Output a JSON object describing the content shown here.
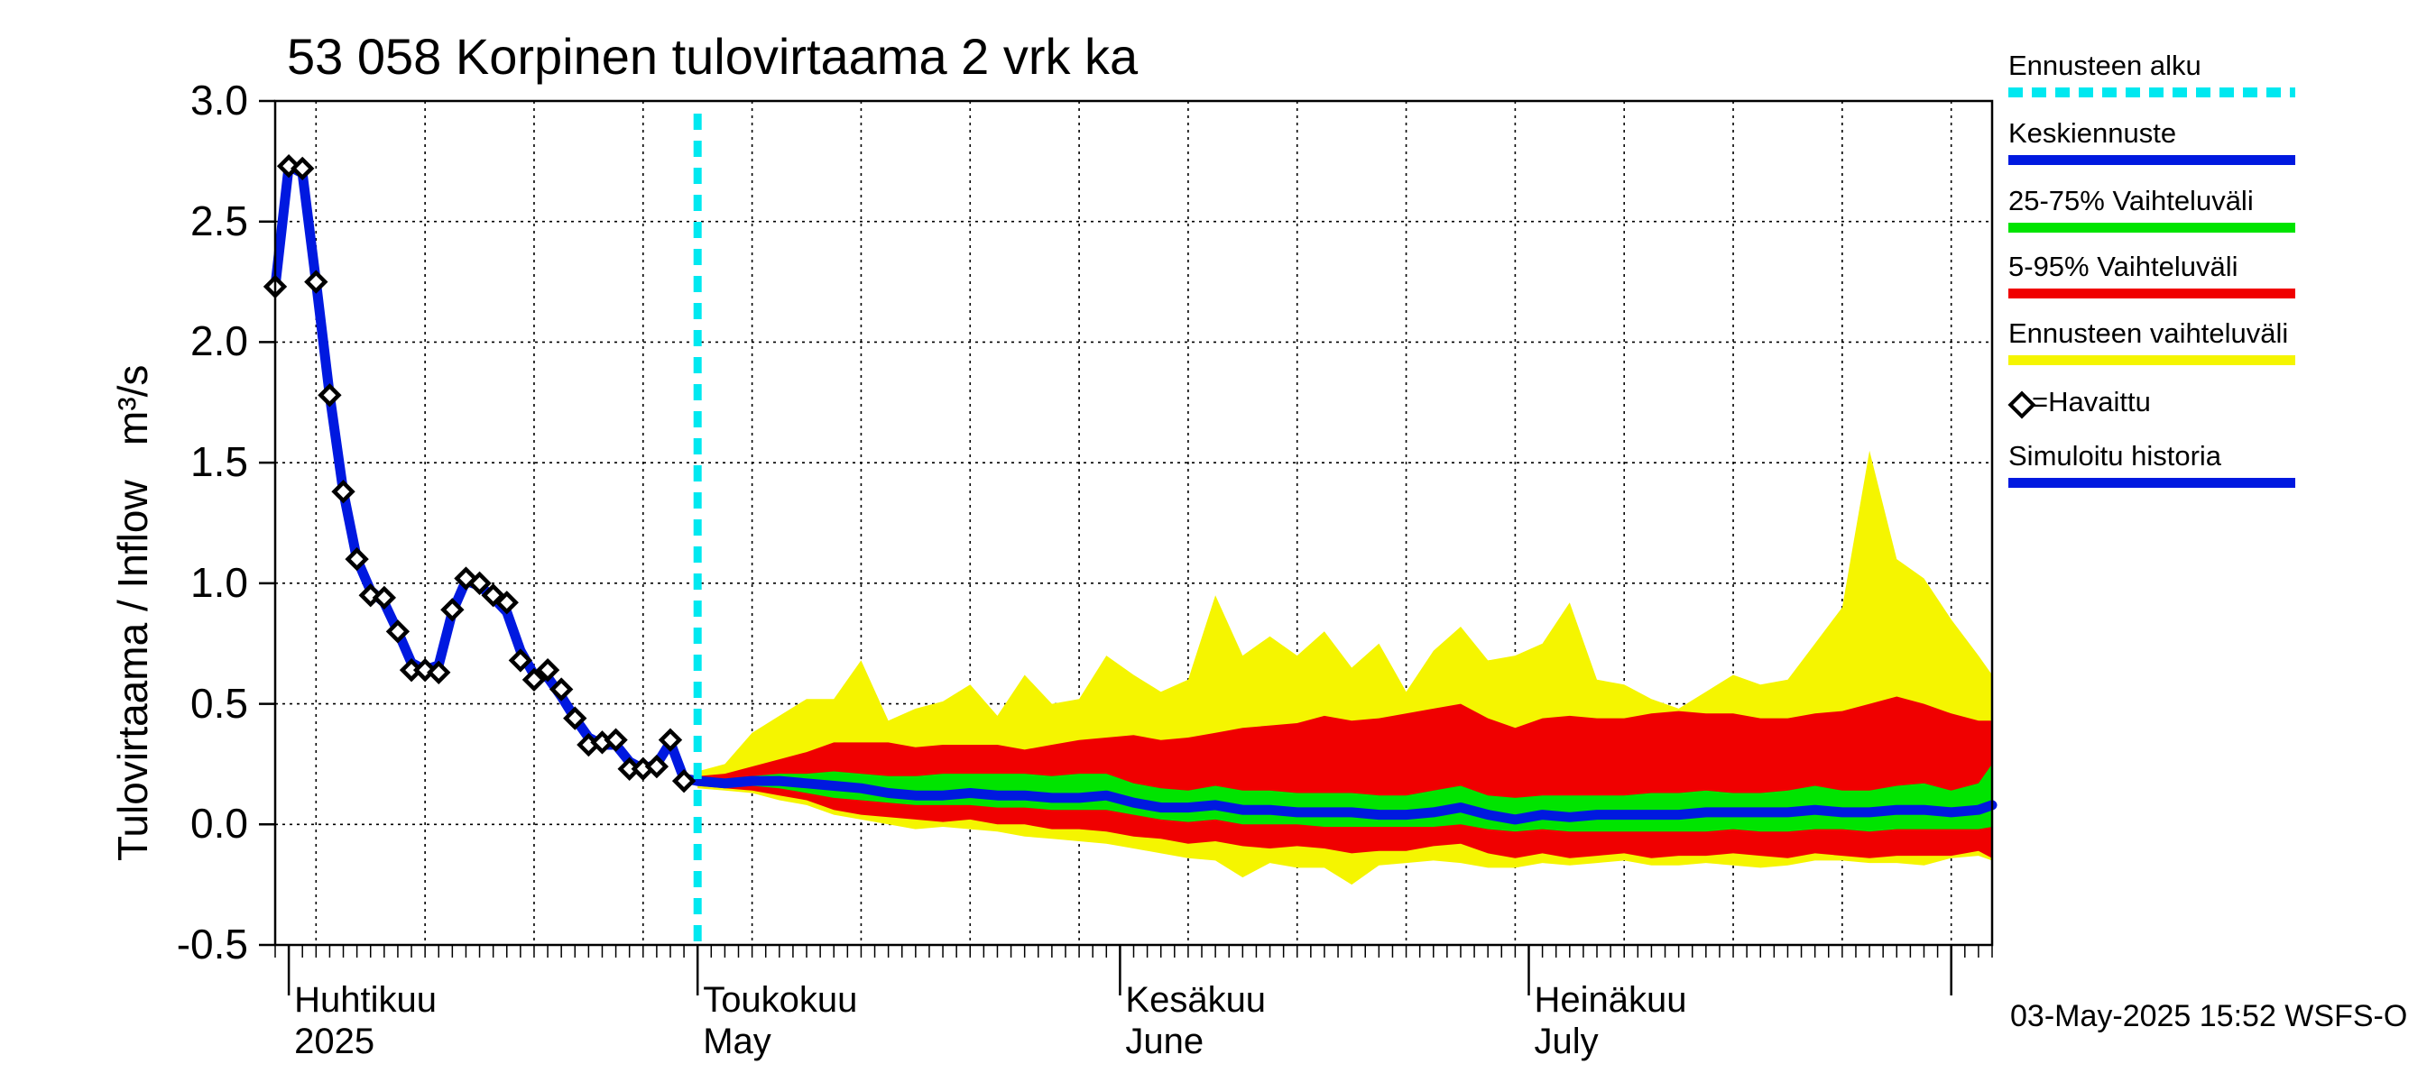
{
  "title": "53 058 Korpinen tulovirtaama 2 vrk ka",
  "ylabel": "Tulovirtaama / Inflow   m³/s",
  "footer": "03-May-2025 15:52 WSFS-O",
  "month_labels": [
    {
      "fi": "Huhtikuu",
      "en": "2025"
    },
    {
      "fi": "Toukokuu",
      "en": "May"
    },
    {
      "fi": "Kesäkuu",
      "en": "June"
    },
    {
      "fi": "Heinäkuu",
      "en": "July"
    }
  ],
  "legend": [
    {
      "label": "Ennusteen alku",
      "color": "#00e8f0",
      "style": "dashed"
    },
    {
      "label": "Keskiennuste",
      "color": "#0019e0",
      "style": "solid"
    },
    {
      "label": "25-75% Vaihteluväli",
      "color": "#00e400",
      "style": "solid"
    },
    {
      "label": "5-95% Vaihteluväli",
      "color": "#f00000",
      "style": "solid"
    },
    {
      "label": "Ennusteen vaihteluväli",
      "color": "#f5f500",
      "style": "solid"
    },
    {
      "label": "=Havaittu",
      "color": "#000000",
      "style": "marker"
    },
    {
      "label": "Simuloitu historia",
      "color": "#0019e0",
      "style": "solid"
    }
  ],
  "chart_data": {
    "type": "line",
    "title": "53 058 Korpinen tulovirtaama 2 vrk ka",
    "ylabel": "Tulovirtaama / Inflow   m³/s",
    "ylim": [
      -0.5,
      3.0
    ],
    "yticks": [
      -0.5,
      0.0,
      0.5,
      1.0,
      1.5,
      2.0,
      2.5,
      3.0
    ],
    "xlim": [
      "2025-03-31",
      "2025-08-04"
    ],
    "grid": true,
    "forecast_start": "2025-05-01",
    "observed": {
      "name": "Havaittu",
      "x": [
        "2025-03-31",
        "2025-04-01",
        "2025-04-02",
        "2025-04-03",
        "2025-04-04",
        "2025-04-05",
        "2025-04-06",
        "2025-04-07",
        "2025-04-08",
        "2025-04-09",
        "2025-04-10",
        "2025-04-11",
        "2025-04-12",
        "2025-04-13",
        "2025-04-14",
        "2025-04-15",
        "2025-04-16",
        "2025-04-17",
        "2025-04-18",
        "2025-04-19",
        "2025-04-20",
        "2025-04-21",
        "2025-04-22",
        "2025-04-23",
        "2025-04-24",
        "2025-04-25",
        "2025-04-26",
        "2025-04-27",
        "2025-04-28",
        "2025-04-29",
        "2025-04-30"
      ],
      "y": [
        2.23,
        2.73,
        2.72,
        2.25,
        1.78,
        1.38,
        1.1,
        0.95,
        0.94,
        0.8,
        0.64,
        0.64,
        0.63,
        0.89,
        1.02,
        1.0,
        0.95,
        0.92,
        0.68,
        0.6,
        0.64,
        0.56,
        0.44,
        0.33,
        0.34,
        0.35,
        0.23,
        0.23,
        0.24,
        0.35,
        0.18
      ]
    },
    "simulated_history": {
      "name": "Simuloitu historia",
      "x": [
        "2025-03-31",
        "2025-04-01",
        "2025-04-02",
        "2025-04-03",
        "2025-04-04",
        "2025-04-05",
        "2025-04-06",
        "2025-04-07",
        "2025-04-08",
        "2025-04-09",
        "2025-04-10",
        "2025-04-11",
        "2025-04-12",
        "2025-04-13",
        "2025-04-14",
        "2025-04-15",
        "2025-04-16",
        "2025-04-17",
        "2025-04-18",
        "2025-04-19",
        "2025-04-20",
        "2025-04-21",
        "2025-04-22",
        "2025-04-23",
        "2025-04-24",
        "2025-04-25",
        "2025-04-26",
        "2025-04-27",
        "2025-04-28",
        "2025-04-29",
        "2025-04-30",
        "2025-05-01"
      ],
      "y": [
        2.23,
        2.73,
        2.7,
        2.25,
        1.78,
        1.38,
        1.1,
        0.97,
        0.92,
        0.8,
        0.67,
        0.64,
        0.66,
        0.88,
        1.01,
        0.99,
        0.94,
        0.88,
        0.72,
        0.62,
        0.61,
        0.53,
        0.44,
        0.36,
        0.33,
        0.33,
        0.26,
        0.23,
        0.25,
        0.34,
        0.19,
        0.18
      ]
    },
    "forecast": {
      "x": [
        "2025-05-01",
        "2025-05-03",
        "2025-05-05",
        "2025-05-07",
        "2025-05-09",
        "2025-05-11",
        "2025-05-13",
        "2025-05-15",
        "2025-05-17",
        "2025-05-19",
        "2025-05-21",
        "2025-05-23",
        "2025-05-25",
        "2025-05-27",
        "2025-05-29",
        "2025-05-31",
        "2025-06-02",
        "2025-06-04",
        "2025-06-06",
        "2025-06-08",
        "2025-06-10",
        "2025-06-12",
        "2025-06-14",
        "2025-06-16",
        "2025-06-18",
        "2025-06-20",
        "2025-06-22",
        "2025-06-24",
        "2025-06-26",
        "2025-06-28",
        "2025-06-30",
        "2025-07-02",
        "2025-07-04",
        "2025-07-06",
        "2025-07-08",
        "2025-07-10",
        "2025-07-12",
        "2025-07-14",
        "2025-07-16",
        "2025-07-18",
        "2025-07-20",
        "2025-07-22",
        "2025-07-24",
        "2025-07-26",
        "2025-07-28",
        "2025-07-30",
        "2025-08-01",
        "2025-08-03",
        "2025-08-04"
      ],
      "median": [
        0.18,
        0.17,
        0.18,
        0.18,
        0.17,
        0.16,
        0.15,
        0.13,
        0.12,
        0.12,
        0.13,
        0.12,
        0.12,
        0.11,
        0.11,
        0.12,
        0.09,
        0.07,
        0.07,
        0.08,
        0.06,
        0.06,
        0.05,
        0.05,
        0.05,
        0.04,
        0.04,
        0.05,
        0.07,
        0.04,
        0.02,
        0.04,
        0.03,
        0.04,
        0.04,
        0.04,
        0.04,
        0.05,
        0.05,
        0.05,
        0.05,
        0.06,
        0.05,
        0.05,
        0.06,
        0.06,
        0.05,
        0.06,
        0.08
      ],
      "p25": [
        0.17,
        0.16,
        0.16,
        0.15,
        0.13,
        0.11,
        0.1,
        0.09,
        0.08,
        0.08,
        0.08,
        0.07,
        0.07,
        0.06,
        0.06,
        0.06,
        0.04,
        0.02,
        0.01,
        0.02,
        0.0,
        0.0,
        0.0,
        -0.01,
        -0.01,
        -0.01,
        -0.01,
        -0.01,
        0.0,
        -0.02,
        -0.03,
        -0.02,
        -0.03,
        -0.03,
        -0.03,
        -0.03,
        -0.03,
        -0.03,
        -0.02,
        -0.03,
        -0.03,
        -0.02,
        -0.02,
        -0.03,
        -0.02,
        -0.02,
        -0.02,
        -0.02,
        -0.01
      ],
      "p75": [
        0.19,
        0.19,
        0.2,
        0.21,
        0.21,
        0.22,
        0.21,
        0.2,
        0.2,
        0.21,
        0.21,
        0.21,
        0.21,
        0.2,
        0.21,
        0.21,
        0.17,
        0.15,
        0.14,
        0.16,
        0.14,
        0.14,
        0.13,
        0.13,
        0.13,
        0.12,
        0.12,
        0.14,
        0.16,
        0.12,
        0.11,
        0.12,
        0.12,
        0.12,
        0.12,
        0.13,
        0.13,
        0.14,
        0.13,
        0.13,
        0.14,
        0.16,
        0.14,
        0.14,
        0.16,
        0.17,
        0.14,
        0.17,
        0.25
      ],
      "p05": [
        0.16,
        0.15,
        0.14,
        0.12,
        0.1,
        0.06,
        0.04,
        0.03,
        0.02,
        0.01,
        0.02,
        0.0,
        0.0,
        -0.02,
        -0.02,
        -0.03,
        -0.05,
        -0.06,
        -0.08,
        -0.07,
        -0.09,
        -0.1,
        -0.09,
        -0.1,
        -0.12,
        -0.11,
        -0.11,
        -0.09,
        -0.08,
        -0.12,
        -0.14,
        -0.12,
        -0.14,
        -0.13,
        -0.12,
        -0.14,
        -0.13,
        -0.13,
        -0.12,
        -0.13,
        -0.14,
        -0.12,
        -0.13,
        -0.14,
        -0.13,
        -0.13,
        -0.13,
        -0.11,
        -0.14
      ],
      "p95": [
        0.2,
        0.21,
        0.24,
        0.27,
        0.3,
        0.34,
        0.34,
        0.34,
        0.32,
        0.33,
        0.33,
        0.33,
        0.31,
        0.33,
        0.35,
        0.36,
        0.37,
        0.35,
        0.36,
        0.38,
        0.4,
        0.41,
        0.42,
        0.45,
        0.43,
        0.44,
        0.46,
        0.48,
        0.5,
        0.44,
        0.4,
        0.44,
        0.45,
        0.44,
        0.44,
        0.46,
        0.47,
        0.46,
        0.46,
        0.44,
        0.44,
        0.46,
        0.47,
        0.5,
        0.53,
        0.5,
        0.46,
        0.43,
        0.43
      ],
      "min": [
        0.15,
        0.14,
        0.13,
        0.1,
        0.08,
        0.04,
        0.02,
        0.0,
        -0.02,
        -0.01,
        -0.02,
        -0.03,
        -0.05,
        -0.06,
        -0.07,
        -0.08,
        -0.1,
        -0.12,
        -0.14,
        -0.15,
        -0.22,
        -0.16,
        -0.18,
        -0.18,
        -0.25,
        -0.17,
        -0.16,
        -0.15,
        -0.16,
        -0.18,
        -0.18,
        -0.16,
        -0.17,
        -0.16,
        -0.15,
        -0.17,
        -0.17,
        -0.16,
        -0.17,
        -0.18,
        -0.17,
        -0.15,
        -0.15,
        -0.16,
        -0.16,
        -0.17,
        -0.14,
        -0.13,
        -0.15
      ],
      "max": [
        0.22,
        0.25,
        0.38,
        0.45,
        0.52,
        0.52,
        0.68,
        0.43,
        0.48,
        0.51,
        0.58,
        0.45,
        0.62,
        0.5,
        0.52,
        0.7,
        0.62,
        0.55,
        0.6,
        0.95,
        0.7,
        0.78,
        0.7,
        0.8,
        0.65,
        0.75,
        0.55,
        0.72,
        0.82,
        0.68,
        0.7,
        0.75,
        0.92,
        0.6,
        0.58,
        0.52,
        0.48,
        0.55,
        0.62,
        0.58,
        0.6,
        0.75,
        0.9,
        1.55,
        1.1,
        1.02,
        0.85,
        0.7,
        0.62
      ]
    }
  }
}
